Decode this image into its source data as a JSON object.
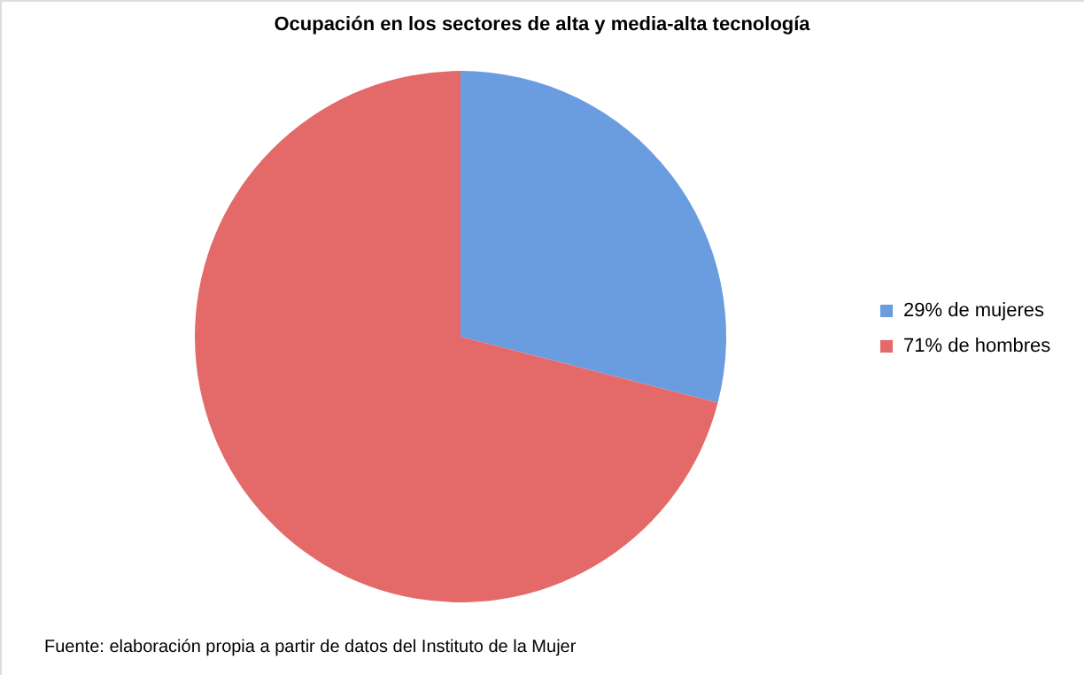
{
  "chart_data": {
    "type": "pie",
    "title": "Ocupación en los sectores de alta y media-alta tecnología",
    "categories": [
      "29% de mujeres",
      "71% de hombres"
    ],
    "values": [
      29,
      71
    ],
    "colors": [
      "#6a9ce0",
      "#e46a6a"
    ],
    "legend": "right",
    "annotations": [
      "Fuente: elaboración propia a partir de datos del Instituto de la Mujer"
    ]
  }
}
